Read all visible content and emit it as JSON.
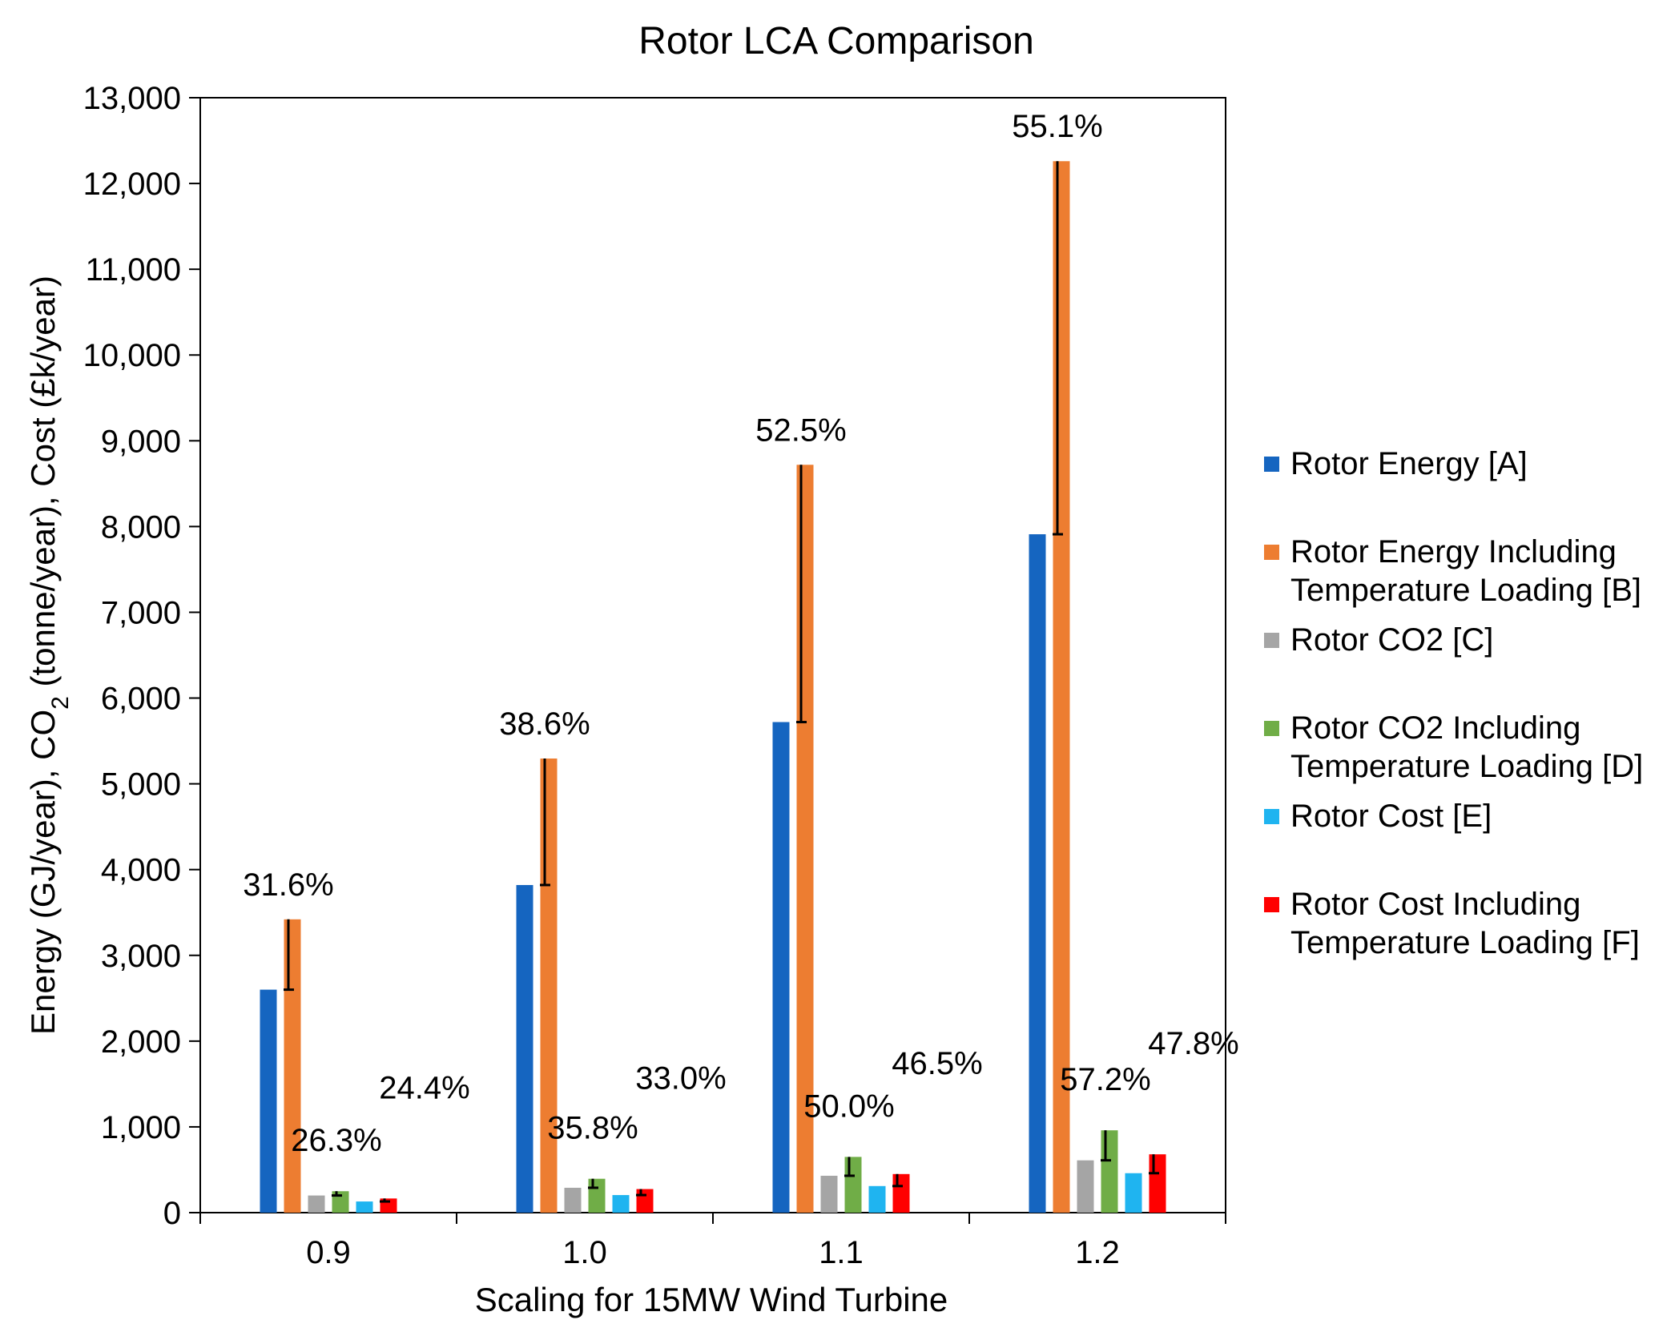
{
  "chart_data": {
    "type": "bar",
    "title": "Rotor LCA Comparison",
    "xlabel": "Scaling for 15MW Wind Turbine",
    "ylabel_parts": [
      "Energy (GJ/year), CO",
      "2",
      " (tonne/year), Cost (£k/year)"
    ],
    "ylim": [
      0,
      13000
    ],
    "yticks": [
      0,
      1000,
      2000,
      3000,
      4000,
      5000,
      6000,
      7000,
      8000,
      9000,
      10000,
      11000,
      12000,
      13000
    ],
    "ytick_labels": [
      "0",
      "1,000",
      "2,000",
      "3,000",
      "4,000",
      "5,000",
      "6,000",
      "7,000",
      "8,000",
      "9,000",
      "10,000",
      "11,000",
      "12,000",
      "13,000"
    ],
    "categories": [
      "0.9",
      "1.0",
      "1.1",
      "1.2"
    ],
    "series": [
      {
        "name": "Rotor Energy [A]",
        "legend_lines": [
          "Rotor Energy [A]"
        ],
        "color": "#1565C0",
        "values": [
          2600,
          3820,
          5720,
          7910
        ]
      },
      {
        "name": "Rotor Energy Including Temperature Loading [B]",
        "legend_lines": [
          "Rotor Energy Including",
          "Temperature Loading [B]"
        ],
        "color": "#ED7D31",
        "values": [
          3420,
          5295,
          8720,
          12260
        ]
      },
      {
        "name": "Rotor CO2 [C]",
        "legend_lines": [
          "Rotor CO2 [C]"
        ],
        "color": "#A5A5A5",
        "values": [
          200,
          290,
          430,
          610
        ]
      },
      {
        "name": "Rotor CO2 Including Temperature Loading [D]",
        "legend_lines": [
          "Rotor CO2 Including",
          "Temperature Loading [D]"
        ],
        "color": "#70AD47",
        "values": [
          250,
          395,
          650,
          960
        ]
      },
      {
        "name": "Rotor Cost [E]",
        "legend_lines": [
          "Rotor Cost [E]"
        ],
        "color": "#1FB4F0",
        "values": [
          130,
          205,
          310,
          460
        ]
      },
      {
        "name": "Rotor Cost Including Temperature Loading [F]",
        "legend_lines": [
          "Rotor Cost Including",
          "Temperature Loading [F]"
        ],
        "color": "#FF0000",
        "values": [
          165,
          275,
          450,
          680
        ]
      }
    ],
    "annotations": [
      {
        "category": "0.9",
        "pair": "energy",
        "text": "31.6%"
      },
      {
        "category": "0.9",
        "pair": "co2",
        "text": "26.3%"
      },
      {
        "category": "0.9",
        "pair": "cost",
        "text": "24.4%"
      },
      {
        "category": "1.0",
        "pair": "energy",
        "text": "38.6%"
      },
      {
        "category": "1.0",
        "pair": "co2",
        "text": "35.8%"
      },
      {
        "category": "1.0",
        "pair": "cost",
        "text": "33.0%"
      },
      {
        "category": "1.1",
        "pair": "energy",
        "text": "52.5%"
      },
      {
        "category": "1.1",
        "pair": "co2",
        "text": "50.0%"
      },
      {
        "category": "1.1",
        "pair": "cost",
        "text": "46.5%"
      },
      {
        "category": "1.2",
        "pair": "energy",
        "text": "55.1%"
      },
      {
        "category": "1.2",
        "pair": "co2",
        "text": "57.2%"
      },
      {
        "category": "1.2",
        "pair": "cost",
        "text": "47.8%"
      }
    ],
    "grid": false,
    "legend_position": "right"
  }
}
